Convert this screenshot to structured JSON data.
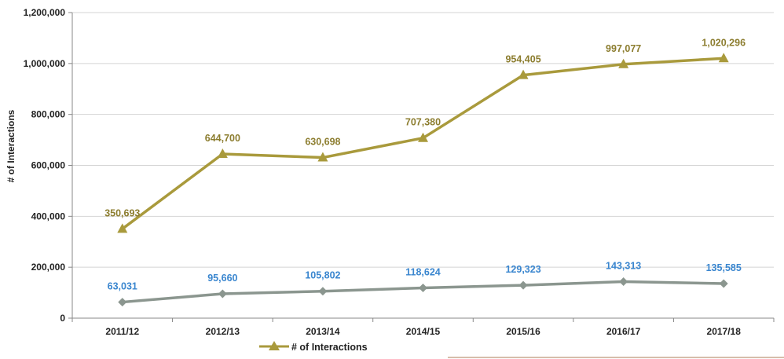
{
  "chart_data": {
    "type": "line",
    "ylabel": "# of Interactions",
    "xlabel": "",
    "categories": [
      "2011/12",
      "2012/13",
      "2013/14",
      "2014/15",
      "2015/16",
      "2016/17",
      "2017/18"
    ],
    "ylim": [
      0,
      1200000
    ],
    "yticks": [
      "0",
      "200,000",
      "400,000",
      "600,000",
      "800,000",
      "1,000,000",
      "1,200,000"
    ],
    "grid": true,
    "legend_position": "bottom",
    "series": [
      {
        "name": "# of Interactions",
        "values": [
          350693,
          644700,
          630698,
          707380,
          954405,
          997077,
          1020296
        ],
        "labels": [
          "350,693",
          "644,700",
          "630,698",
          "707,380",
          "954,405",
          "997,077",
          "1,020,296"
        ],
        "color": "#a99a3c",
        "label_color": "#8c7d2f",
        "marker": "triangle"
      },
      {
        "name": "",
        "values": [
          63031,
          95660,
          105802,
          118624,
          129323,
          143313,
          135585
        ],
        "labels": [
          "63,031",
          "95,660",
          "105,802",
          "118,624",
          "129,323",
          "143,313",
          "135,585"
        ],
        "color": "#8b968f",
        "label_color": "#3a86cf",
        "marker": "diamond"
      }
    ]
  }
}
